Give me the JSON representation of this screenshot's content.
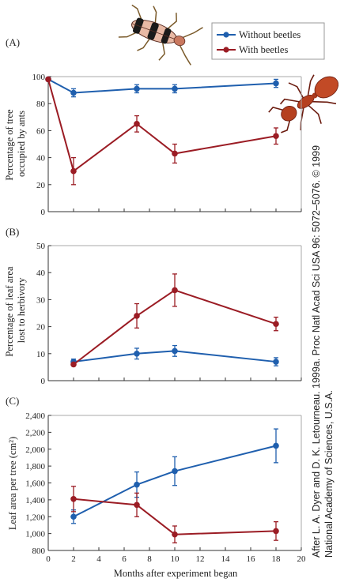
{
  "credit": {
    "line1": "After L. A. Dyer and D. K. Letourneau. 1999a. Proc Natl Acad Sci USA 96: 5072–5076. © 1999",
    "line2": "National Academy of Sciences, U.S.A."
  },
  "colors": {
    "without": "#1f5fae",
    "with": "#9b1c24",
    "axis": "#333333",
    "frame": "#a9a9a9"
  },
  "icons": [
    "beetle-icon",
    "ant-icon"
  ],
  "chart_data": [
    {
      "type": "line",
      "panel": "(A)",
      "ylabel": [
        "Percentage of tree",
        "occupied by ants"
      ],
      "xlabel": "",
      "xlim": [
        0,
        20
      ],
      "ylim": [
        0,
        100
      ],
      "yticks": [
        0,
        20,
        40,
        60,
        80,
        100
      ],
      "yticklabels": [
        "0",
        "20",
        "40",
        "60",
        "80",
        "100"
      ],
      "legend": {
        "placement": "top-right",
        "entries": [
          "Without beetles",
          "With beetles"
        ]
      },
      "series": [
        {
          "name": "Without beetles",
          "color": "#1f5fae",
          "x": [
            0,
            2,
            7,
            10,
            18
          ],
          "y": [
            98,
            88,
            91,
            91,
            95
          ],
          "err": [
            0,
            3,
            3,
            3,
            3
          ]
        },
        {
          "name": "With beetles",
          "color": "#9b1c24",
          "x": [
            0,
            2,
            7,
            10,
            18
          ],
          "y": [
            98,
            30,
            65,
            43,
            56
          ],
          "err": [
            0,
            10,
            6,
            7,
            6
          ]
        }
      ]
    },
    {
      "type": "line",
      "panel": "(B)",
      "ylabel": [
        "Percentage of leaf area",
        "lost to herbivory"
      ],
      "xlabel": "",
      "xlim": [
        0,
        20
      ],
      "ylim": [
        0,
        50
      ],
      "yticks": [
        0,
        10,
        20,
        30,
        40,
        50
      ],
      "yticklabels": [
        "0",
        "10",
        "20",
        "30",
        "40",
        "50"
      ],
      "series": [
        {
          "name": "Without beetles",
          "color": "#1f5fae",
          "x": [
            2,
            7,
            10,
            18
          ],
          "y": [
            7,
            10,
            11,
            7
          ],
          "err": [
            1,
            2,
            2,
            1.5
          ]
        },
        {
          "name": "With beetles",
          "color": "#9b1c24",
          "x": [
            2,
            7,
            10,
            18
          ],
          "y": [
            6,
            24,
            33.5,
            21
          ],
          "err": [
            0,
            4.5,
            6,
            2.5
          ]
        }
      ]
    },
    {
      "type": "line",
      "panel": "(C)",
      "ylabel": [
        "Leaf area per tree (cm²)"
      ],
      "xlabel": "Months after experiment began",
      "xlim": [
        0,
        20
      ],
      "ylim": [
        800,
        2400
      ],
      "yticks": [
        800,
        1000,
        1200,
        1400,
        1600,
        1800,
        2000,
        2200,
        2400
      ],
      "yticklabels": [
        "800",
        "1,000",
        "1,200",
        "1,400",
        "1,600",
        "1,800",
        "2,000",
        "2,200",
        "2,400"
      ],
      "xticks": [
        0,
        2,
        4,
        6,
        8,
        10,
        12,
        14,
        16,
        18,
        20
      ],
      "xticklabels": [
        "0",
        "2",
        "4",
        "6",
        "8",
        "10",
        "12",
        "14",
        "16",
        "18",
        "20"
      ],
      "series": [
        {
          "name": "Without beetles",
          "color": "#1f5fae",
          "x": [
            2,
            7,
            10,
            18
          ],
          "y": [
            1200,
            1580,
            1740,
            2040
          ],
          "err": [
            80,
            150,
            170,
            200
          ]
        },
        {
          "name": "With beetles",
          "color": "#9b1c24",
          "x": [
            2,
            7,
            10,
            18
          ],
          "y": [
            1410,
            1340,
            990,
            1030
          ],
          "err": [
            150,
            140,
            100,
            110
          ]
        }
      ]
    }
  ]
}
